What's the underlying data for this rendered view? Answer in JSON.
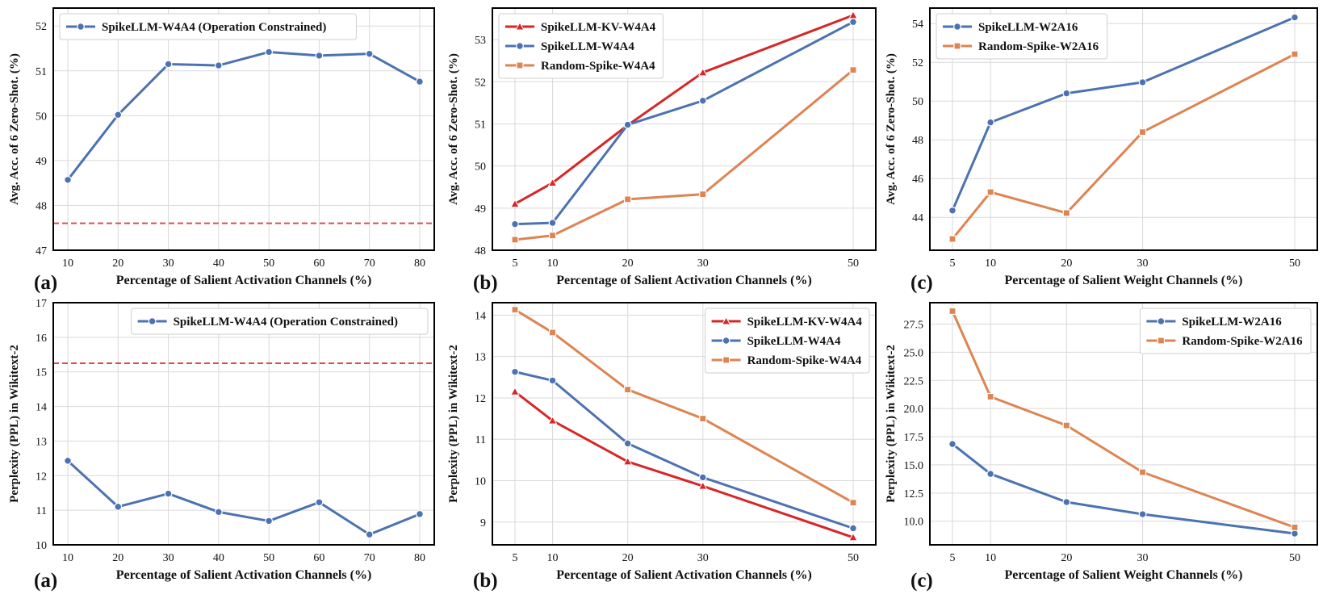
{
  "colors": {
    "blue": "#4C72B0",
    "orange": "#DD8452",
    "red": "#D62728",
    "refline": "#D94F4F",
    "grid": "#D9D9D9",
    "axis": "#000000"
  },
  "chart_data": [
    {
      "type": "line",
      "panel_label": "(a)",
      "xlabel": "Percentage of Salient Activation Channels (%)",
      "ylabel": "Avg. Acc. of 6 Zero-Shot. (%)",
      "x_scale": "categorical",
      "x": [
        10,
        20,
        30,
        40,
        50,
        60,
        70,
        80
      ],
      "xticks": [
        "10",
        "20",
        "30",
        "40",
        "50",
        "60",
        "70",
        "80"
      ],
      "ylim": [
        47,
        52.4
      ],
      "yticks": [
        47,
        48,
        49,
        50,
        51,
        52
      ],
      "reference_line": 47.6,
      "legend_position": "top-left",
      "series": [
        {
          "name": "SpikeLLM-W4A4 (Operation Constrained)",
          "color": "blue",
          "marker": "circle",
          "values": [
            48.57,
            50.02,
            51.15,
            51.12,
            51.42,
            51.34,
            51.38,
            50.76
          ]
        }
      ]
    },
    {
      "type": "line",
      "panel_label": "(b)",
      "xlabel": "Percentage of Salient Activation Channels (%)",
      "ylabel": "Avg. Acc. of 6 Zero-Shot. (%)",
      "x_scale": "linear",
      "x": [
        5,
        10,
        20,
        30,
        50
      ],
      "xticks": [
        "5",
        "10",
        "20",
        "30",
        "50"
      ],
      "ylim": [
        48,
        53.75
      ],
      "yticks": [
        48,
        49,
        50,
        51,
        52,
        53
      ],
      "legend_position": "top-left",
      "series": [
        {
          "name": "SpikeLLM-KV-W4A4",
          "color": "red",
          "marker": "triangle",
          "values": [
            49.1,
            49.6,
            50.97,
            52.22,
            53.58
          ]
        },
        {
          "name": "SpikeLLM-W4A4",
          "color": "blue",
          "marker": "circle",
          "values": [
            48.62,
            48.65,
            50.98,
            51.55,
            53.42
          ]
        },
        {
          "name": "Random-Spike-W4A4",
          "color": "orange",
          "marker": "square",
          "values": [
            48.25,
            48.35,
            49.21,
            49.33,
            52.28
          ]
        }
      ]
    },
    {
      "type": "line",
      "panel_label": "(c)",
      "xlabel": "Percentage of Salient Weight Channels (%)",
      "ylabel": "Avg. Acc. of 6 Zero-Shot. (%)",
      "x_scale": "linear",
      "x": [
        5,
        10,
        20,
        30,
        50
      ],
      "xticks": [
        "5",
        "10",
        "20",
        "30",
        "50"
      ],
      "ylim": [
        42.3,
        54.8
      ],
      "yticks": [
        44,
        46,
        48,
        50,
        52,
        54
      ],
      "legend_position": "top-left",
      "series": [
        {
          "name": "SpikeLLM-W2A16",
          "color": "blue",
          "marker": "circle",
          "values": [
            44.35,
            48.9,
            50.4,
            50.97,
            54.32
          ]
        },
        {
          "name": "Random-Spike-W2A16",
          "color": "orange",
          "marker": "square",
          "values": [
            42.88,
            45.3,
            44.22,
            48.4,
            52.42
          ]
        }
      ]
    },
    {
      "type": "line",
      "panel_label": "(a)",
      "xlabel": "Percentage of Salient Activation Channels (%)",
      "ylabel": "Perplexity (PPL) in Wikitext-2",
      "x_scale": "categorical",
      "x": [
        10,
        20,
        30,
        40,
        50,
        60,
        70,
        80
      ],
      "xticks": [
        "10",
        "20",
        "30",
        "40",
        "50",
        "60",
        "70",
        "80"
      ],
      "ylim": [
        10,
        17
      ],
      "yticks": [
        10,
        11,
        12,
        13,
        14,
        15,
        16,
        17
      ],
      "reference_line": 15.25,
      "legend_position": "top-right",
      "series": [
        {
          "name": "SpikeLLM-W4A4 (Operation Constrained)",
          "color": "blue",
          "marker": "circle",
          "values": [
            12.43,
            11.1,
            11.48,
            10.95,
            10.69,
            11.23,
            10.3,
            10.89
          ]
        }
      ]
    },
    {
      "type": "line",
      "panel_label": "(b)",
      "xlabel": "Percentage of Salient Activation Channels (%)",
      "ylabel": "Perplexity (PPL) in Wikitext-2",
      "x_scale": "linear",
      "x": [
        5,
        10,
        20,
        30,
        50
      ],
      "xticks": [
        "5",
        "10",
        "20",
        "30",
        "50"
      ],
      "ylim": [
        8.45,
        14.3
      ],
      "yticks": [
        9,
        10,
        11,
        12,
        13,
        14
      ],
      "legend_position": "top-right",
      "series": [
        {
          "name": "SpikeLLM-KV-W4A4",
          "color": "red",
          "marker": "triangle",
          "values": [
            12.15,
            11.45,
            10.46,
            9.87,
            8.63
          ]
        },
        {
          "name": "SpikeLLM-W4A4",
          "color": "blue",
          "marker": "circle",
          "values": [
            12.63,
            12.42,
            10.9,
            10.08,
            8.85
          ]
        },
        {
          "name": "Random-Spike-W4A4",
          "color": "orange",
          "marker": "square",
          "values": [
            14.13,
            13.58,
            12.2,
            11.5,
            9.47
          ]
        }
      ]
    },
    {
      "type": "line",
      "panel_label": "(c)",
      "xlabel": "Percentage of Salient Weight Channels (%)",
      "ylabel": "Perplexity (PPL) in Wikitext-2",
      "x_scale": "linear",
      "x": [
        5,
        10,
        20,
        30,
        50
      ],
      "xticks": [
        "5",
        "10",
        "20",
        "30",
        "50"
      ],
      "ylim": [
        7.9,
        29.4
      ],
      "yticks": [
        10.0,
        12.5,
        15.0,
        17.5,
        20.0,
        22.5,
        25.0,
        27.5
      ],
      "ytick_labels": [
        "10.0",
        "12.5",
        "15.0",
        "17.5",
        "20.0",
        "22.5",
        "25.0",
        "27.5"
      ],
      "legend_position": "top-right",
      "series": [
        {
          "name": "SpikeLLM-W2A16",
          "color": "blue",
          "marker": "circle",
          "values": [
            16.85,
            14.2,
            11.7,
            10.62,
            8.9
          ]
        },
        {
          "name": "Random-Spike-W2A16",
          "color": "orange",
          "marker": "square",
          "values": [
            28.65,
            21.05,
            18.5,
            14.35,
            9.45
          ]
        }
      ]
    }
  ]
}
